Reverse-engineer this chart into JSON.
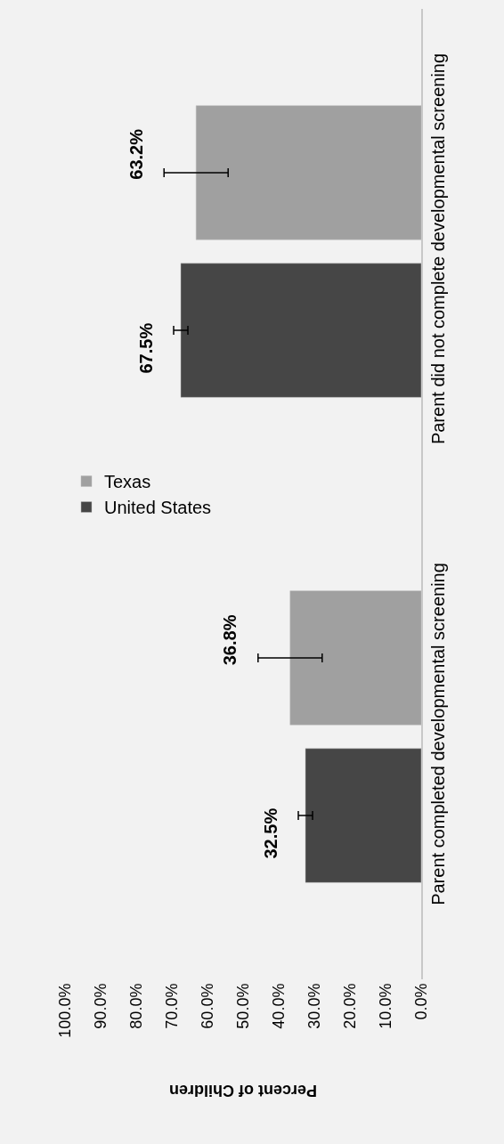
{
  "chart_data": {
    "type": "bar",
    "orientation": "horizontal",
    "xlabel": "Percent of Children",
    "categories": [
      "Parent did not complete developmental screening",
      "Parent completed developmental screening"
    ],
    "series": [
      {
        "name": "Texas",
        "color": "#a0a0a0",
        "values": [
          63.2,
          36.8
        ],
        "errors": [
          9.0,
          9.0
        ],
        "value_labels": [
          "63.2%",
          "36.8%"
        ]
      },
      {
        "name": "United States",
        "color": "#464646",
        "values": [
          67.5,
          32.5
        ],
        "errors": [
          2.0,
          2.0
        ],
        "value_labels": [
          "67.5%",
          "32.5%"
        ]
      }
    ],
    "xlim": [
      100,
      0
    ],
    "xticks": [
      {
        "value": 100,
        "label": "100.0%"
      },
      {
        "value": 90,
        "label": "90.0%"
      },
      {
        "value": 80,
        "label": "80.0%"
      },
      {
        "value": 70,
        "label": "70.0%"
      },
      {
        "value": 60,
        "label": "60.0%"
      },
      {
        "value": 50,
        "label": "50.0%"
      },
      {
        "value": 40,
        "label": "40.0%"
      },
      {
        "value": 30,
        "label": "30.0%"
      },
      {
        "value": 20,
        "label": "20.0%"
      },
      {
        "value": 10,
        "label": "10.0%"
      },
      {
        "value": 0,
        "label": "0.0%"
      }
    ],
    "legend": "left",
    "grid": false
  }
}
